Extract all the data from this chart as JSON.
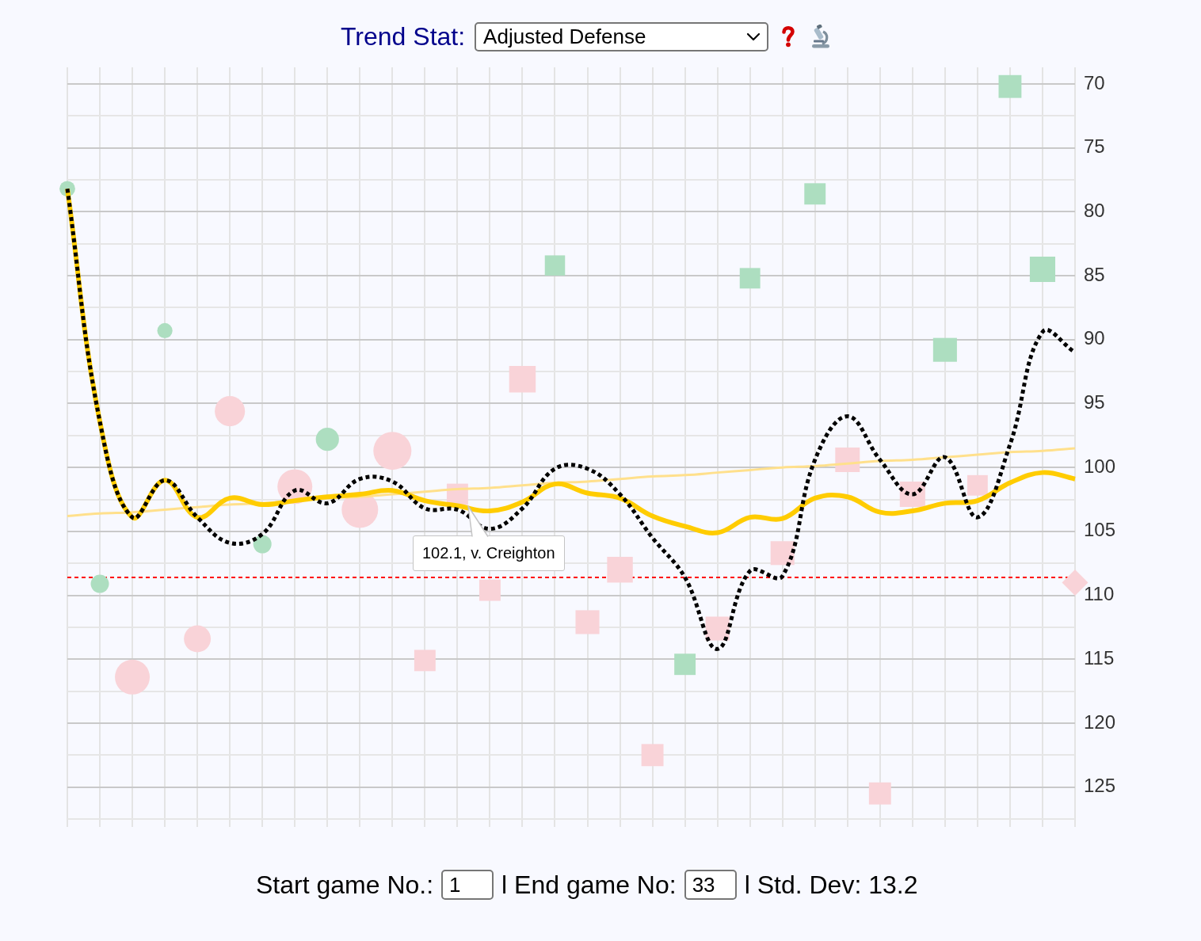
{
  "chart_data": {
    "type": "bubble",
    "title": "Trend Stat:",
    "subtitle": "Adjusted Defense",
    "categories": [
      null,
      null,
      null,
      null,
      null,
      null,
      null,
      null,
      null,
      null,
      null,
      null,
      null,
      null,
      null,
      null,
      null,
      null,
      null,
      null,
      null,
      null,
      null,
      null,
      null,
      null,
      null,
      null,
      null,
      null,
      null,
      null
    ],
    "series": [
      {
        "marker": "circle",
        "values": [
          78.2,
          109.1,
          116.4,
          89.3,
          113.4,
          95.6,
          106,
          101.5,
          97.8,
          103.3,
          98.7,
          null,
          null,
          null,
          null,
          null,
          null,
          null,
          null,
          null,
          null,
          null,
          null,
          null,
          null,
          null,
          null,
          null,
          null,
          null,
          null,
          null
        ],
        "sizes": [
          0.17,
          0.23,
          0.84,
          0.16,
          0.5,
          0.63,
          0.23,
          0.84,
          0.37,
          0.92,
          1,
          null,
          null,
          null,
          null,
          null,
          null,
          null,
          null,
          null,
          null,
          null,
          null,
          null,
          null,
          null,
          null,
          null,
          null,
          null,
          null,
          null
        ],
        "colors": [
          "#addec0",
          "#addec0",
          "#f9d3d8",
          "#addec0",
          "#f9d3d8",
          "#f9d3d8",
          "#addec0",
          "#f9d3d8",
          "#addec0",
          "#f9d3d8",
          "#f9d3d8",
          null,
          null,
          null,
          null,
          null,
          null,
          null,
          null,
          null,
          null,
          null,
          null,
          null,
          null,
          null,
          null,
          null,
          null,
          null,
          null,
          null
        ]
      },
      {
        "marker": "square",
        "values": [
          null,
          null,
          null,
          null,
          null,
          null,
          null,
          null,
          null,
          null,
          null,
          115.1,
          102.1,
          109.6,
          93.1,
          84.2,
          112.1,
          108,
          122.5,
          115.4,
          112.6,
          85.2,
          106.7,
          78.6,
          99.4,
          125.5,
          102.1,
          90.8,
          101.4,
          70.2,
          84.5,
          null
        ],
        "sizes": [
          null,
          null,
          null,
          null,
          null,
          null,
          null,
          null,
          null,
          null,
          null,
          0.4,
          0.4,
          0.4,
          0.62,
          0.36,
          0.5,
          0.58,
          0.43,
          0.4,
          0.5,
          0.37,
          0.5,
          0.4,
          0.53,
          0.43,
          0.57,
          0.5,
          0.37,
          0.46,
          0.57,
          null
        ],
        "colors": [
          null,
          null,
          null,
          null,
          null,
          null,
          null,
          null,
          null,
          null,
          null,
          "#f9d3d8",
          "#f9d3d8",
          "#f9d3d8",
          "#f9d3d8",
          "#addec0",
          "#f9d3d8",
          "#f9d3d8",
          "#f9d3d8",
          "#addec0",
          "#f9d3d8",
          "#addec0",
          "#f9d3d8",
          "#addec0",
          "#f9d3d8",
          "#f9d3d8",
          "#f9d3d8",
          "#addec0",
          "#f9d3d8",
          "#addec0",
          "#addec0",
          null
        ]
      },
      {
        "marker": "diamond",
        "values": [
          null,
          null,
          null,
          null,
          null,
          null,
          null,
          null,
          null,
          null,
          null,
          null,
          null,
          null,
          null,
          null,
          null,
          null,
          null,
          null,
          null,
          null,
          null,
          null,
          null,
          null,
          null,
          null,
          null,
          null,
          null,
          109
        ],
        "sizes": [
          null,
          null,
          null,
          null,
          null,
          null,
          null,
          null,
          null,
          null,
          null,
          null,
          null,
          null,
          null,
          null,
          null,
          null,
          null,
          null,
          null,
          null,
          null,
          null,
          null,
          null,
          null,
          null,
          null,
          null,
          null,
          0.3
        ],
        "colors": [
          null,
          null,
          null,
          null,
          null,
          null,
          null,
          null,
          null,
          null,
          null,
          null,
          null,
          null,
          null,
          null,
          null,
          null,
          null,
          null,
          null,
          null,
          null,
          null,
          null,
          null,
          null,
          null,
          null,
          null,
          null,
          "#f9d3d8"
        ]
      },
      {
        "type": "line",
        "color": "#000000",
        "line_style": "dotted",
        "values": [
          78.2,
          96.4,
          103.9,
          101,
          103.9,
          105.9,
          105.2,
          101.8,
          102.8,
          100.9,
          101.1,
          103.2,
          103.3,
          104.8,
          103.2,
          100.1,
          100.1,
          102.1,
          105.5,
          108.6,
          114.2,
          108.1,
          108.5,
          99.4,
          96,
          99.4,
          102.1,
          99.2,
          103.9,
          98.2,
          89.4,
          91
        ]
      },
      {
        "type": "line",
        "color": "#ffcc00",
        "values": [
          78.2,
          96.4,
          103.9,
          101,
          103.9,
          102.4,
          102.9,
          102.6,
          102.3,
          102.1,
          101.8,
          102.6,
          103,
          103.4,
          102.7,
          101.3,
          102,
          102.4,
          103.8,
          104.6,
          105.1,
          103.9,
          104,
          102.4,
          102.3,
          103.5,
          103.4,
          102.8,
          102.6,
          101.2,
          100.4,
          100.9
        ]
      },
      {
        "type": "line",
        "color": "#ffe08c",
        "values": [
          103.8,
          103.6,
          103.5,
          103.3,
          103.1,
          102.9,
          102.8,
          102.6,
          102.4,
          102.3,
          102.1,
          101.9,
          101.7,
          101.6,
          101.4,
          101.2,
          101.1,
          100.9,
          100.7,
          100.6,
          100.4,
          100.2,
          100,
          99.9,
          99.7,
          99.5,
          99.4,
          99.2,
          99,
          98.8,
          98.7,
          98.5
        ]
      }
    ],
    "ylim": [
      127.5,
      68.7
    ],
    "yticks": [
      70,
      {
        "value": 72.5,
        "label": null
      },
      75,
      {
        "value": 77.5,
        "label": null
      },
      80,
      {
        "value": 82.5,
        "label": null
      },
      85,
      {
        "value": 87.5,
        "label": null
      },
      90,
      {
        "value": 92.5,
        "label": null
      },
      95,
      {
        "value": 97.5,
        "label": null
      },
      100,
      {
        "value": 102.5,
        "label": null
      },
      105,
      {
        "value": 107.5,
        "label": null
      },
      110,
      {
        "value": 112.5,
        "label": null
      },
      115,
      {
        "value": 117.5,
        "label": null
      },
      120,
      {
        "value": 122.5,
        "label": null
      },
      125,
      {
        "value": 127.5,
        "label": null
      }
    ],
    "grid": true,
    "tick_labels": "y",
    "ref_lines": [
      {
        "axis": "y",
        "value": 108.6,
        "color": "#ff0000",
        "line_style": "dotted"
      }
    ],
    "annotations": [
      "102.1, v. Creighton",
      "Start game No.:",
      "1",
      "l End game No:",
      "33",
      "l Std. Dev: 13.2"
    ]
  }
}
